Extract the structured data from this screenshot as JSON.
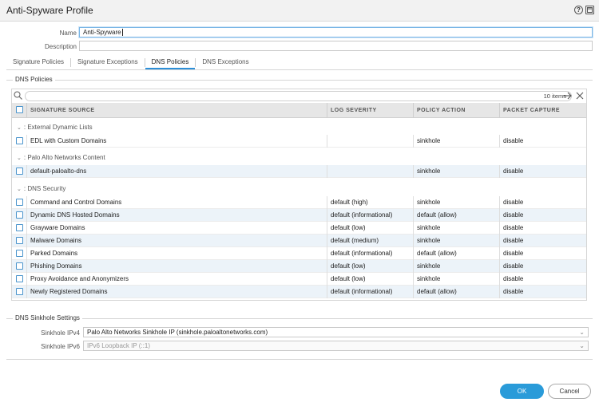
{
  "window": {
    "title": "Anti-Spyware Profile"
  },
  "form": {
    "name_label": "Name",
    "name_value": "Anti-Spyware",
    "description_label": "Description",
    "description_value": ""
  },
  "tabs": [
    {
      "label": "Signature Policies",
      "active": false
    },
    {
      "label": "Signature Exceptions",
      "active": false
    },
    {
      "label": "DNS Policies",
      "active": true
    },
    {
      "label": "DNS Exceptions",
      "active": false
    }
  ],
  "dns_policies": {
    "section_title": "DNS Policies",
    "item_count": "10 items",
    "columns": [
      "SIGNATURE SOURCE",
      "LOG SEVERITY",
      "POLICY ACTION",
      "PACKET CAPTURE"
    ],
    "groups": [
      {
        "label": ": External Dynamic Lists",
        "rows": [
          {
            "source": "EDL with Custom Domains",
            "severity": "",
            "action": "sinkhole",
            "capture": "disable"
          }
        ]
      },
      {
        "label": ": Palo Alto Networks Content",
        "rows": [
          {
            "source": "default-paloalto-dns",
            "severity": "",
            "action": "sinkhole",
            "capture": "disable"
          }
        ]
      },
      {
        "label": ": DNS Security",
        "rows": [
          {
            "source": "Command and Control Domains",
            "severity": "default (high)",
            "action": "sinkhole",
            "capture": "disable"
          },
          {
            "source": "Dynamic DNS Hosted Domains",
            "severity": "default (informational)",
            "action": "default (allow)",
            "capture": "disable"
          },
          {
            "source": "Grayware Domains",
            "severity": "default (low)",
            "action": "sinkhole",
            "capture": "disable"
          },
          {
            "source": "Malware Domains",
            "severity": "default (medium)",
            "action": "sinkhole",
            "capture": "disable"
          },
          {
            "source": "Parked Domains",
            "severity": "default (informational)",
            "action": "default (allow)",
            "capture": "disable"
          },
          {
            "source": "Phishing Domains",
            "severity": "default (low)",
            "action": "sinkhole",
            "capture": "disable"
          },
          {
            "source": "Proxy Avoidance and Anonymizers",
            "severity": "default (low)",
            "action": "sinkhole",
            "capture": "disable"
          },
          {
            "source": "Newly Registered Domains",
            "severity": "default (informational)",
            "action": "default (allow)",
            "capture": "disable"
          }
        ]
      }
    ]
  },
  "sinkhole": {
    "section_title": "DNS Sinkhole Settings",
    "ipv4_label": "Sinkhole IPv4",
    "ipv4_value": "Palo Alto Networks Sinkhole IP (sinkhole.paloaltonetworks.com)",
    "ipv6_label": "Sinkhole IPv6",
    "ipv6_value": "IPv6 Loopback IP (::1)"
  },
  "buttons": {
    "ok": "OK",
    "cancel": "Cancel"
  },
  "icons": {
    "help": "help-icon",
    "maximize": "maximize-icon",
    "search": "search-icon",
    "forward": "arrow-right-icon",
    "clear": "clear-icon",
    "chevron": "chevron-down-icon"
  },
  "colors": {
    "accent": "#2a9bd9",
    "row_alt": "#ecf3f9",
    "checkbox": "#4a94cc"
  }
}
